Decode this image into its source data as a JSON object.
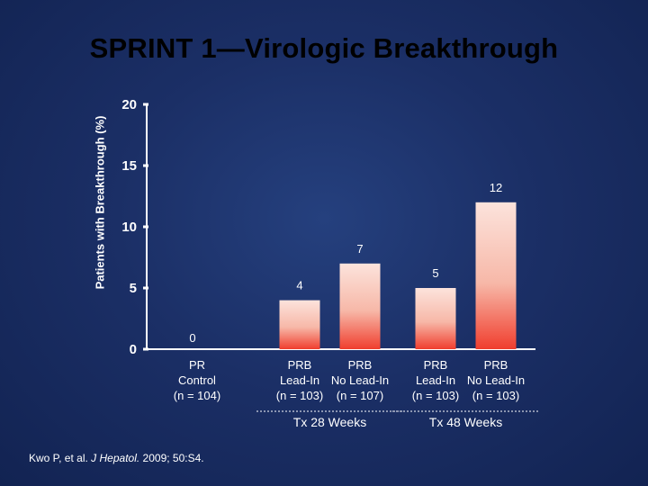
{
  "slide": {
    "title": "SPRINT 1—Virologic Breakthrough",
    "citation_authors": "Kwo P, et al.",
    "citation_journal": "J Hepatol.",
    "citation_details": "2009; 50:S4."
  },
  "chart_data": {
    "type": "bar",
    "title": "SPRINT 1—Virologic Breakthrough",
    "ylabel": "Patients with Breakthrough (%)",
    "xlabel": "",
    "ylim": [
      0,
      20
    ],
    "yticks": [
      "0",
      "5",
      "10",
      "15",
      "20"
    ],
    "ytick_values": [
      0,
      5,
      10,
      15,
      20
    ],
    "categories": [
      {
        "lines": [
          "PR",
          "Control",
          "(n = 104)"
        ]
      },
      {
        "lines": [
          "PRB",
          "Lead-In",
          "(n = 103)"
        ]
      },
      {
        "lines": [
          "PRB",
          "No Lead-In",
          "(n = 107)"
        ]
      },
      {
        "lines": [
          "PRB",
          "Lead-In",
          "(n = 103)"
        ]
      },
      {
        "lines": [
          "PRB",
          "No Lead-In",
          "(n = 103)"
        ]
      }
    ],
    "values": [
      0,
      4,
      7,
      5,
      12
    ],
    "value_labels": [
      "0",
      "4",
      "7",
      "5",
      "12"
    ],
    "groups": [
      {
        "label": "Tx 28 Weeks",
        "members": [
          1,
          2
        ]
      },
      {
        "label": "Tx 48 Weeks",
        "members": [
          3,
          4
        ]
      }
    ],
    "bar_color_top": "#fce3dc",
    "bar_color_bottom": "#f03e2e",
    "bar_color_solid": "#f6b1a3"
  }
}
